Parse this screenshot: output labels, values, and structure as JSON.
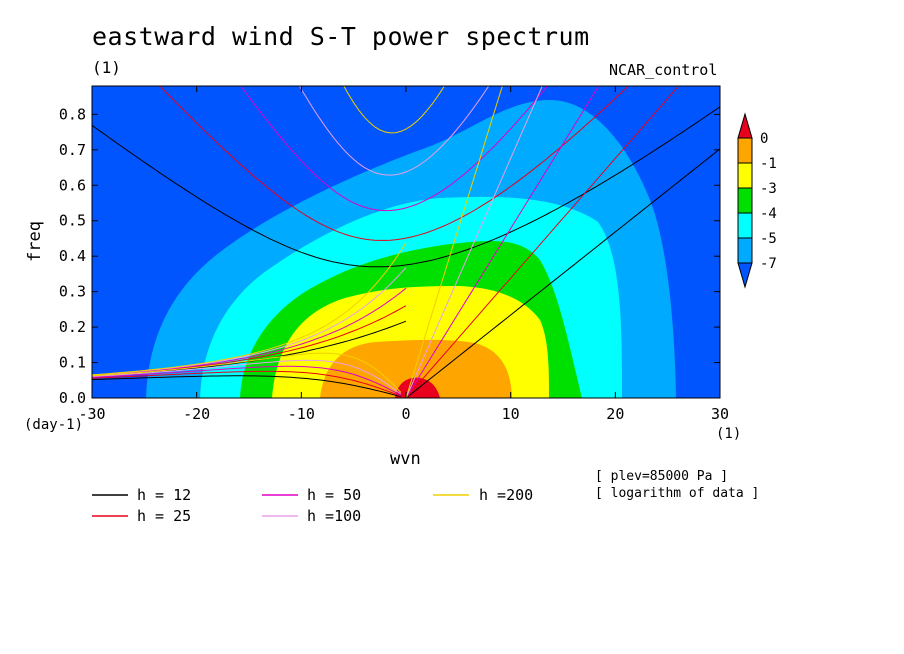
{
  "chart_data": {
    "type": "heatmap",
    "title": "eastward wind S-T power spectrum",
    "subtitle": "(1)",
    "run_label": "NCAR_control",
    "xlabel": "wvn",
    "ylabel": "freq",
    "x_unit": "(1)",
    "y_unit": "(day-1)",
    "xlim": [
      -30,
      30
    ],
    "ylim": [
      0,
      0.88
    ],
    "x_ticks": [
      "-30",
      "-20",
      "-10",
      "0",
      "10",
      "20",
      "30"
    ],
    "y_ticks": [
      "0.0",
      "0.1",
      "0.2",
      "0.3",
      "0.4",
      "0.5",
      "0.6",
      "0.7",
      "0.8"
    ],
    "info": [
      "[ plev=85000 Pa ]",
      "[ logarithm of data ]"
    ],
    "colorbar": {
      "labels": [
        "0",
        "-1",
        "-3",
        "-4",
        "-5",
        "-7"
      ],
      "colors": [
        "#e8001c",
        "#ffa500",
        "#ffff00",
        "#00e000",
        "#00ffff",
        "#00aaff",
        "#0055ff"
      ]
    },
    "contour_levels": [
      -7,
      -5,
      -4,
      -3,
      -1,
      0
    ],
    "background_color": "#0055ff",
    "dispersion_curves": [
      {
        "label": "h = 12",
        "h": 12,
        "color": "#000000"
      },
      {
        "label": "h = 25",
        "h": 25,
        "color": "#e8001c"
      },
      {
        "label": "h = 50",
        "h": 50,
        "color": "#e000c8"
      },
      {
        "label": "h =100",
        "h": 100,
        "color": "#e8a0e8"
      },
      {
        "label": "h =200",
        "h": 200,
        "color": "#f0d000"
      }
    ]
  }
}
